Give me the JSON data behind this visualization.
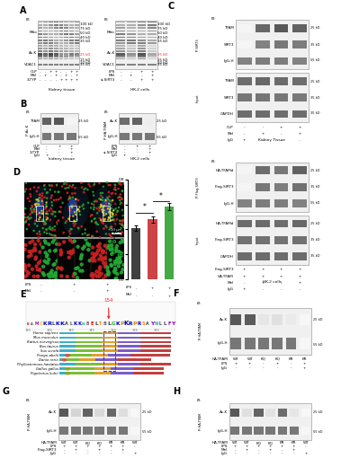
{
  "bg_color": "#ffffff",
  "panel_label_fontsize": 7,
  "panel_label_fontweight": "bold",
  "bar_values": [
    0.41,
    0.48,
    0.58
  ],
  "bar_colors": [
    "#404040",
    "#cc4444",
    "#44aa44"
  ],
  "bar_yerr": [
    0.02,
    0.025,
    0.03
  ],
  "bar_lps": [
    "-",
    "+",
    "+"
  ],
  "bar_mel": [
    "-",
    "-",
    "+"
  ],
  "bar_ylabel": "Colocalization of SIRT3 and TFAM",
  "bar_ylim": [
    0.0,
    0.8
  ],
  "bar_yticks": [
    0.0,
    0.2,
    0.4,
    0.6,
    0.8
  ],
  "species_names": [
    "Homo sapiens",
    "Mus musculus",
    "Rattus norvegicus",
    "Bos taurus",
    "Sus scrofa",
    "Pongo abelii",
    "Danio rerio",
    "Phyllostomous hastatus",
    "Gallus gallus",
    "Pigotretus kuhii"
  ],
  "red_marker": "#ff2020",
  "wb_gray": "#e0e0e0",
  "wb_dark": "#505050"
}
